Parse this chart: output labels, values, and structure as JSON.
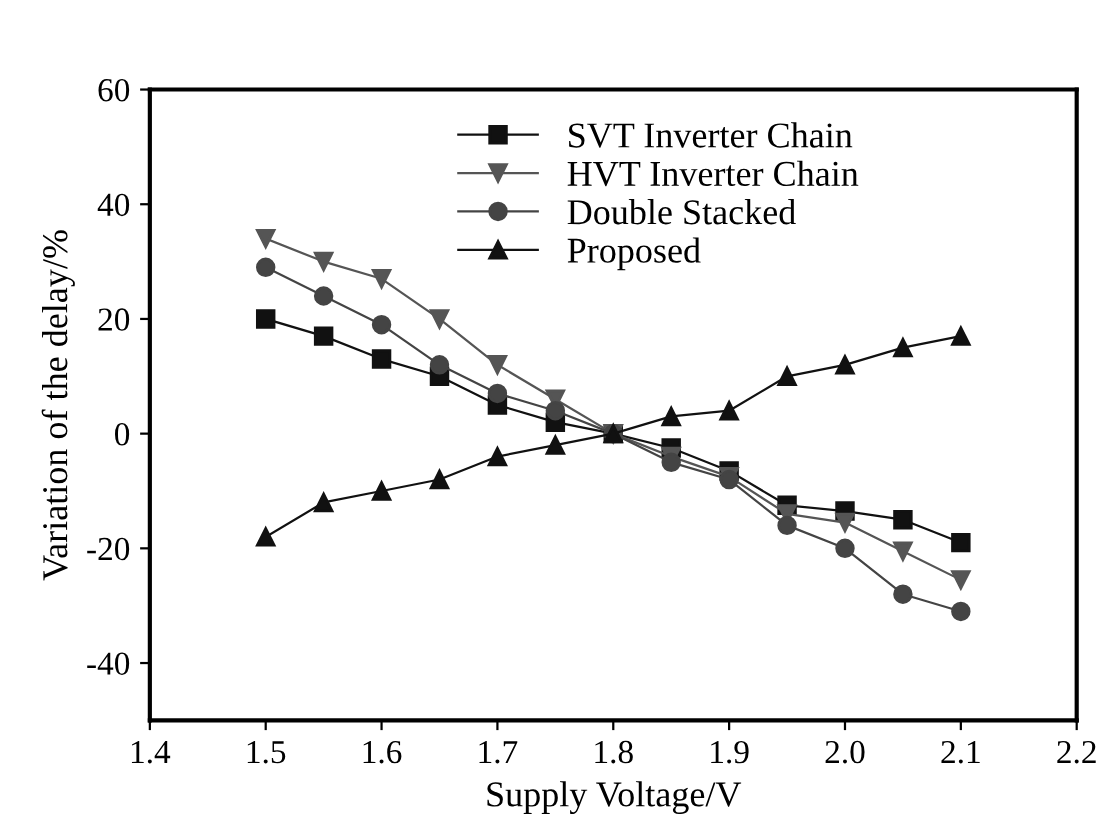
{
  "chart_data": {
    "type": "line",
    "xlabel": "Supply Voltage/V",
    "ylabel": "Variation of the delay/%",
    "x": [
      1.5,
      1.55,
      1.6,
      1.65,
      1.7,
      1.75,
      1.8,
      1.85,
      1.9,
      1.95,
      2.0,
      2.05,
      2.1
    ],
    "series": [
      {
        "name": "SVT Inverter Chain",
        "color": "#111111",
        "marker": "square",
        "values": [
          20,
          17,
          13,
          10,
          5,
          2,
          0,
          -2.5,
          -6.5,
          -12.5,
          -13.5,
          -15,
          -19
        ]
      },
      {
        "name": "HVT Inverter Chain",
        "color": "#555555",
        "marker": "triangle_down",
        "values": [
          34,
          30,
          27,
          20,
          12,
          6,
          0,
          -4,
          -7.5,
          -14,
          -15.5,
          -20.5,
          -25.5
        ]
      },
      {
        "name": "Double Stacked",
        "color": "#444444",
        "marker": "circle",
        "values": [
          29,
          24,
          19,
          12,
          7,
          4,
          0,
          -5,
          -8,
          -16,
          -20,
          -28,
          -31
        ]
      },
      {
        "name": "Proposed",
        "color": "#111111",
        "marker": "triangle",
        "values": [
          -18,
          -12,
          -10,
          -8,
          -4,
          -2,
          0,
          3,
          4,
          10,
          12,
          15,
          17
        ]
      }
    ],
    "xlim": [
      1.4,
      2.2
    ],
    "xticks": [
      {
        "value": 1.4,
        "label": "1.4"
      },
      {
        "value": 1.5,
        "label": "1.5"
      },
      {
        "value": 1.6,
        "label": "1.6"
      },
      {
        "value": 1.7,
        "label": "1.7"
      },
      {
        "value": 1.8,
        "label": "1.8"
      },
      {
        "value": 1.9,
        "label": "1.9"
      },
      {
        "value": 2.0,
        "label": "2.0"
      },
      {
        "value": 2.1,
        "label": "2.1"
      },
      {
        "value": 2.2,
        "label": "2.2"
      }
    ],
    "ylim": [
      -50,
      60
    ],
    "yticks": [
      -40,
      -20,
      0,
      20,
      40,
      60
    ],
    "legend": "top right",
    "grid": false
  }
}
